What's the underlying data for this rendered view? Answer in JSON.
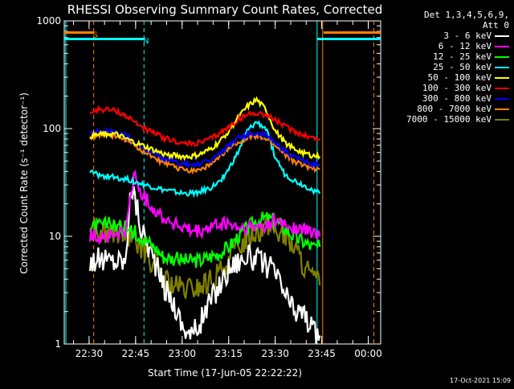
{
  "chart_data": {
    "type": "line",
    "title": "RHESSI Observing Summary Count Rates, Corrected",
    "xlabel": "Start Time (17-Jun-05 22:22:22)",
    "ylabel": "Corrected Count Rate (s⁻¹ detector⁻¹)",
    "ylog": true,
    "ylim": [
      1,
      1000
    ],
    "xlim": [
      22.3667,
      24.0667
    ],
    "ytick_labels": [
      "1",
      "10",
      "100",
      "1000"
    ],
    "ytick_values": [
      1,
      10,
      100,
      1000
    ],
    "xtick_labels": [
      "22:30",
      "22:45",
      "23:00",
      "23:15",
      "23:30",
      "23:45",
      "00:00"
    ],
    "xtick_values": [
      22.5,
      22.75,
      23.0,
      23.25,
      23.5,
      23.75,
      24.0
    ],
    "legend_header": [
      "Det 1,3,4,5,6,9,",
      "Att 0"
    ],
    "legend_position": "right",
    "series": [
      {
        "name": "3 - 6 keV",
        "color": "#ffffff",
        "x": [
          22.505,
          22.62,
          22.7,
          22.72,
          22.74,
          22.78,
          22.85,
          22.9,
          22.95,
          23.0,
          23.05,
          23.1,
          23.15,
          23.2,
          23.25,
          23.3,
          23.35,
          23.4,
          23.45,
          23.5,
          23.55,
          23.6,
          23.65,
          23.7,
          23.74
        ],
        "y": [
          6,
          6,
          6,
          30,
          25,
          12,
          6,
          3.5,
          2.5,
          1.5,
          1.2,
          1.6,
          2.5,
          3.5,
          5,
          6,
          6.5,
          6,
          5.5,
          4.5,
          3,
          2,
          2,
          1.3,
          1.2
        ]
      },
      {
        "name": "6 - 12 keV",
        "color": "#ff00ff",
        "x": [
          22.505,
          22.62,
          22.7,
          22.74,
          22.78,
          22.85,
          22.9,
          23.0,
          23.05,
          23.1,
          23.15,
          23.2,
          23.25,
          23.3,
          23.35,
          23.4,
          23.45,
          23.5,
          23.55,
          23.6,
          23.65,
          23.7,
          23.74
        ],
        "y": [
          10,
          10,
          11,
          38,
          25,
          18,
          15,
          12,
          11,
          11,
          12,
          13,
          13,
          12,
          12,
          12,
          13,
          14,
          13,
          12,
          11.5,
          11,
          10
        ]
      },
      {
        "name": "12 - 25 keV",
        "color": "#00ff00",
        "x": [
          22.505,
          22.6,
          22.7,
          22.78,
          22.85,
          22.9,
          23.0,
          23.05,
          23.1,
          23.15,
          23.2,
          23.25,
          23.3,
          23.35,
          23.4,
          23.45,
          23.5,
          23.55,
          23.6,
          23.65,
          23.7,
          23.74
        ],
        "y": [
          12,
          13,
          12,
          10,
          8,
          6.5,
          6,
          6,
          6,
          6.5,
          7,
          8,
          10,
          12,
          14,
          15,
          14,
          12,
          10,
          9,
          8,
          8
        ]
      },
      {
        "name": "25 - 50 keV",
        "color": "#00ffff",
        "x": [
          22.505,
          22.55,
          22.6,
          22.7,
          22.8,
          22.9,
          23.0,
          23.05,
          23.1,
          23.15,
          23.2,
          23.25,
          23.3,
          23.35,
          23.4,
          23.45,
          23.5,
          23.55,
          23.6,
          23.65,
          23.7,
          23.74
        ],
        "y": [
          40,
          37,
          36,
          34,
          30,
          27,
          25,
          25,
          26,
          28,
          32,
          42,
          60,
          95,
          115,
          100,
          55,
          38,
          33,
          30,
          27,
          25
        ]
      },
      {
        "name": "50 - 100 keV",
        "color": "#ffff00",
        "x": [
          22.505,
          22.6,
          22.65,
          22.7,
          22.8,
          22.9,
          23.0,
          23.05,
          23.1,
          23.15,
          23.2,
          23.25,
          23.3,
          23.35,
          23.4,
          23.45,
          23.5,
          23.55,
          23.6,
          23.65,
          23.7,
          23.74
        ],
        "y": [
          85,
          90,
          88,
          80,
          68,
          58,
          55,
          55,
          58,
          64,
          75,
          95,
          125,
          160,
          185,
          150,
          95,
          75,
          65,
          60,
          56,
          55
        ]
      },
      {
        "name": "100 - 300 keV",
        "color": "#ff0000",
        "x": [
          22.505,
          22.55,
          22.6,
          22.65,
          22.7,
          22.8,
          22.9,
          23.0,
          23.05,
          23.1,
          23.15,
          23.2,
          23.25,
          23.3,
          23.35,
          23.4,
          23.45,
          23.5,
          23.55,
          23.6,
          23.65,
          23.7,
          23.74
        ],
        "y": [
          140,
          150,
          150,
          145,
          130,
          100,
          82,
          73,
          72,
          74,
          80,
          90,
          103,
          120,
          135,
          140,
          135,
          120,
          105,
          95,
          88,
          82,
          80
        ]
      },
      {
        "name": "300 - 800 keV",
        "color": "#0000ff",
        "x": [
          22.505,
          22.55,
          22.6,
          22.65,
          22.7,
          22.8,
          22.9,
          23.0,
          23.05,
          23.1,
          23.15,
          23.2,
          23.25,
          23.3,
          23.35,
          23.4,
          23.45,
          23.5,
          23.55,
          23.6,
          23.65,
          23.7,
          23.74
        ],
        "y": [
          90,
          95,
          95,
          92,
          85,
          65,
          52,
          47,
          46,
          47,
          50,
          58,
          70,
          82,
          88,
          90,
          86,
          75,
          62,
          54,
          50,
          47,
          46
        ]
      },
      {
        "name": "800 - 7000 keV",
        "color": "#ff8000",
        "x": [
          22.505,
          22.55,
          22.6,
          22.65,
          22.7,
          22.8,
          22.9,
          23.0,
          23.05,
          23.1,
          23.15,
          23.2,
          23.25,
          23.3,
          23.35,
          23.4,
          23.45,
          23.5,
          23.55,
          23.6,
          23.65,
          23.7,
          23.74
        ],
        "y": [
          83,
          87,
          88,
          85,
          78,
          60,
          48,
          42,
          41,
          42,
          46,
          53,
          65,
          75,
          82,
          84,
          80,
          70,
          58,
          50,
          46,
          43,
          42
        ]
      },
      {
        "name": "7000 - 15000 keV",
        "color": "#808000",
        "x": [
          22.505,
          22.55,
          22.6,
          22.65,
          22.7,
          22.78,
          22.85,
          22.9,
          22.95,
          23.0,
          23.05,
          23.1,
          23.15,
          23.2,
          23.25,
          23.3,
          23.35,
          23.4,
          23.45,
          23.5,
          23.55,
          23.6,
          23.65,
          23.7,
          23.74
        ],
        "y": [
          11,
          12,
          11,
          11,
          10,
          8,
          5.5,
          4,
          3.5,
          3.2,
          3.2,
          3.4,
          3.8,
          4.5,
          6,
          8,
          10,
          11.5,
          12,
          11.5,
          10,
          8,
          5.5,
          4,
          3.5
        ]
      }
    ],
    "annotations": [
      {
        "text": "S",
        "color": "#ff8000",
        "x": 22.52,
        "y": 750
      },
      {
        "text": "N",
        "color": "#00ffff",
        "x": 22.79,
        "y": 660
      }
    ]
  },
  "timestamp": "17-Oct-2021 15:09"
}
